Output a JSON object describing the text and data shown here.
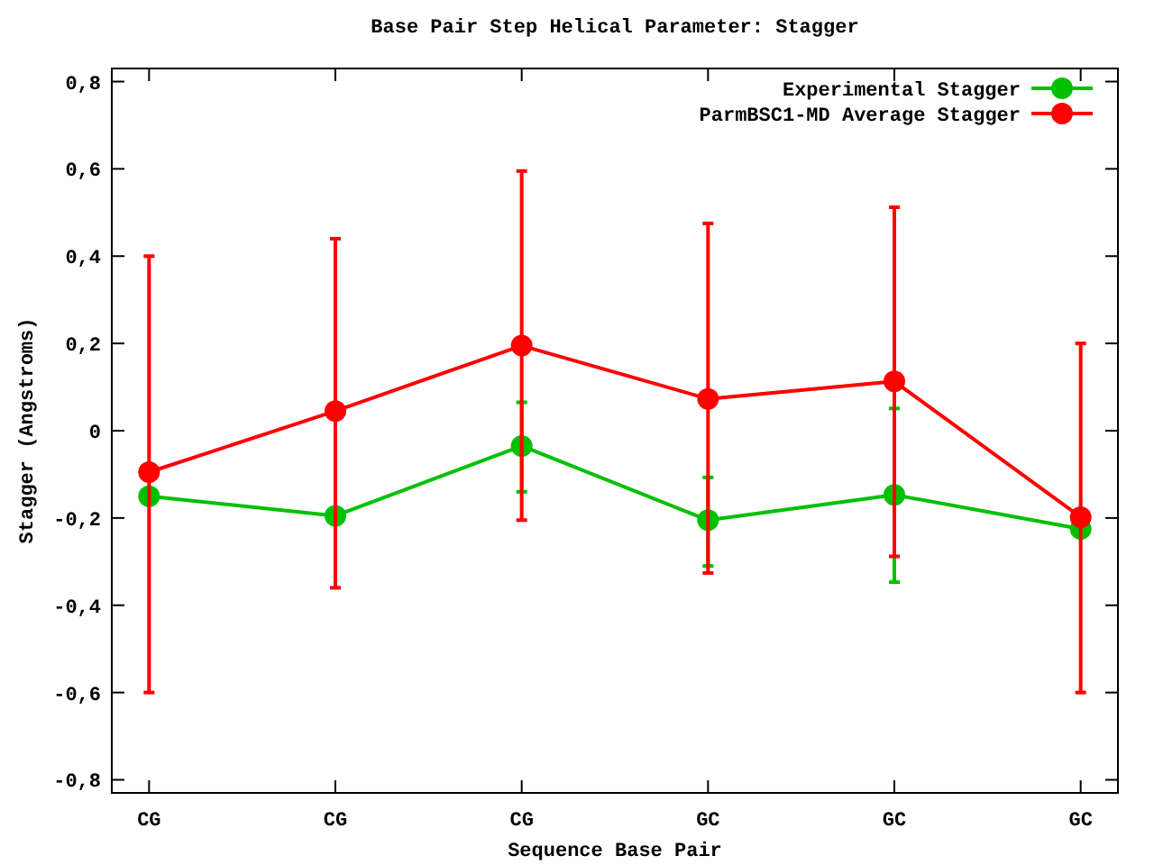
{
  "chart_data": {
    "type": "line",
    "title": "Base Pair Step Helical Parameter: Stagger",
    "xlabel": "Sequence Base Pair",
    "ylabel": "Stagger (Angstroms)",
    "categories": [
      "CG",
      "CG",
      "CG",
      "GC",
      "GC",
      "GC"
    ],
    "series": [
      {
        "name": "Experimental Stagger",
        "color": "#00c000",
        "values": [
          -0.15,
          -0.195,
          -0.035,
          -0.205,
          -0.147,
          -0.225
        ],
        "errors": [
          null,
          null,
          [
            -0.14,
            0.065
          ],
          [
            -0.31,
            -0.107
          ],
          [
            -0.347,
            0.051
          ],
          null
        ]
      },
      {
        "name": "ParmBSC1-MD Average Stagger",
        "color": "#ff0000",
        "values": [
          -0.095,
          0.045,
          0.195,
          0.073,
          0.113,
          -0.198
        ],
        "errors": [
          [
            -0.6,
            0.4
          ],
          [
            -0.36,
            0.44
          ],
          [
            -0.205,
            0.595
          ],
          [
            -0.326,
            0.475
          ],
          [
            -0.288,
            0.512
          ],
          [
            -0.6,
            0.2
          ]
        ]
      }
    ],
    "ylim": [
      -0.83,
      0.83
    ],
    "yticks": [
      {
        "value": -0.8,
        "label": "-0,8"
      },
      {
        "value": -0.6,
        "label": "-0,6"
      },
      {
        "value": -0.4,
        "label": "-0,4"
      },
      {
        "value": -0.2,
        "label": "-0,2"
      },
      0,
      {
        "value": 0.2,
        "label": "0,2"
      },
      {
        "value": 0.4,
        "label": "0,4"
      },
      {
        "value": 0.6,
        "label": "0,6"
      },
      {
        "value": 0.8,
        "label": "0,8"
      }
    ],
    "legend": "top right",
    "marker": "circle",
    "line_style": "solid",
    "grid": false
  }
}
